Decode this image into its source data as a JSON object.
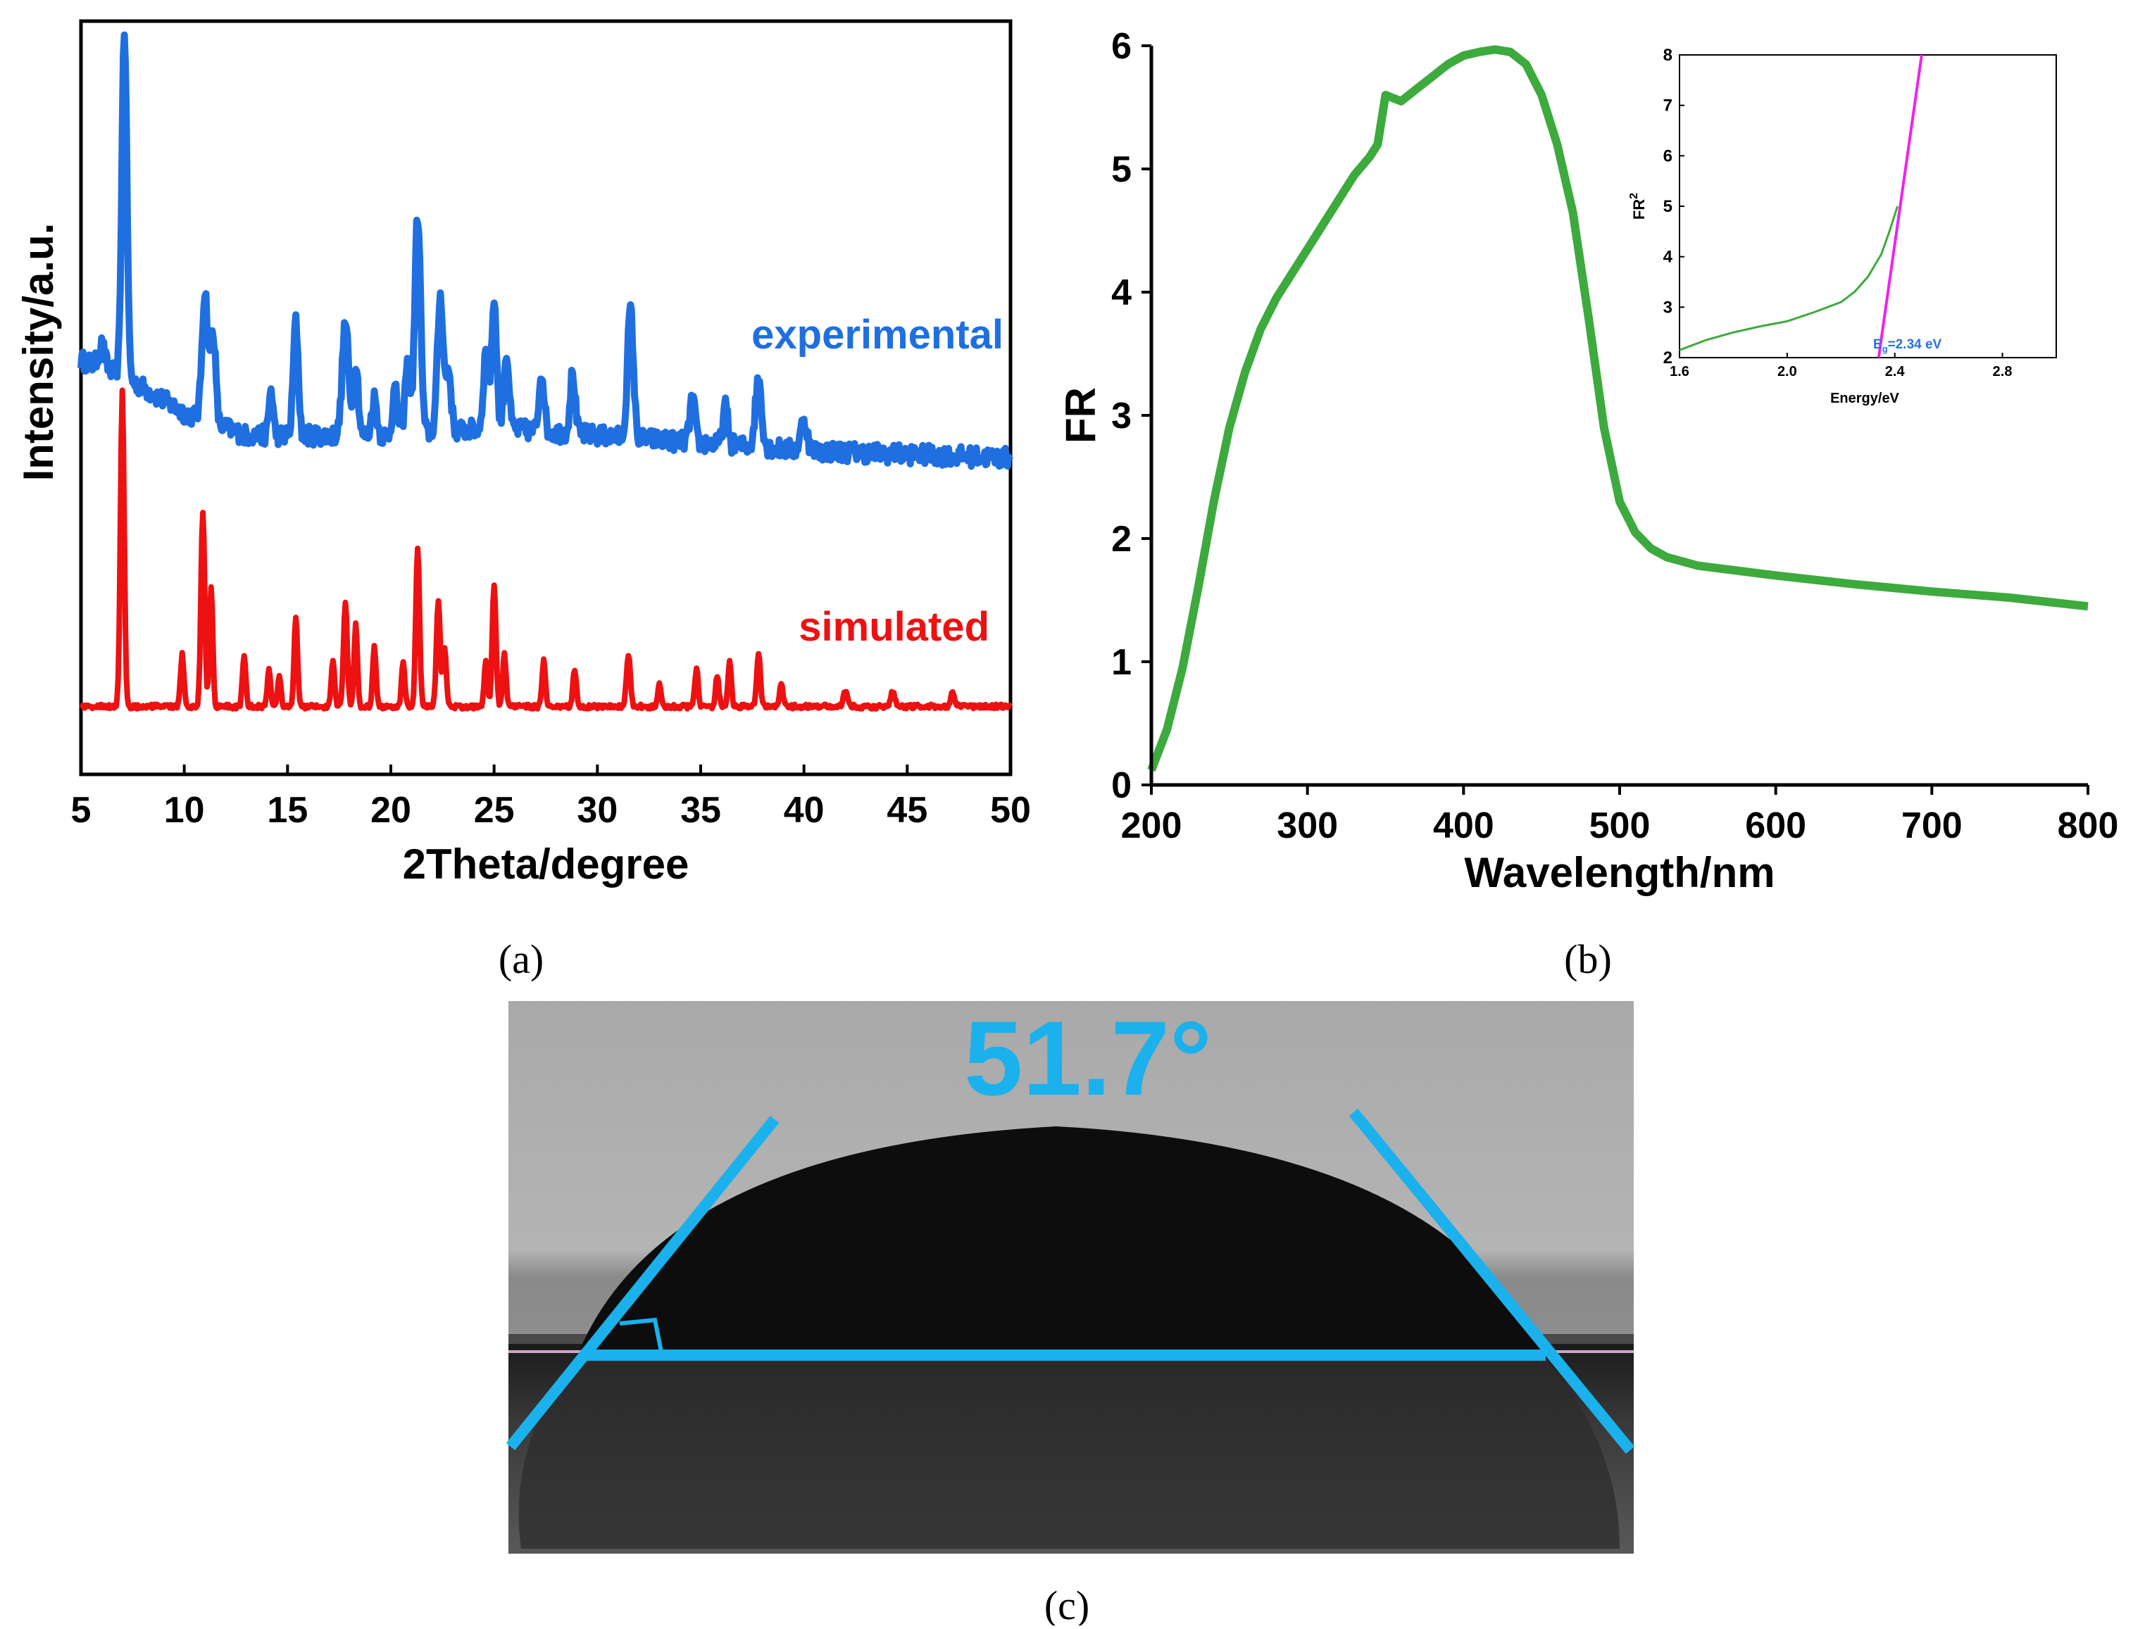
{
  "panel_labels": {
    "a": "(a)",
    "b": "(b)",
    "c": "(c)"
  },
  "colors": {
    "experimental": "#1f6fe0",
    "simulated": "#ee1111",
    "fr_curve": "#3daa3d",
    "inset_fit": "#ee22ee",
    "annotation": "#1ab1ec"
  },
  "chart_data": [
    {
      "id": "xrd",
      "type": "line",
      "title": "",
      "xlabel": "2Theta/degree",
      "ylabel": "Intensity/a.u.",
      "xlim": [
        5,
        50
      ],
      "ylim": [
        0,
        100
      ],
      "xticks": [
        5,
        10,
        15,
        20,
        25,
        30,
        35,
        40,
        45,
        50
      ],
      "xtick_labels": [
        "5",
        "10",
        "15",
        "20",
        "25",
        "30",
        "35",
        "40",
        "45",
        "50"
      ],
      "series": [
        {
          "name": "experimental",
          "label": "experimental",
          "baseline": [
            [
              5,
              55
            ],
            [
              7,
              53
            ],
            [
              10,
              48
            ],
            [
              13,
              45
            ],
            [
              20,
              45
            ],
            [
              25,
              46
            ],
            [
              30,
              45
            ],
            [
              40,
              43
            ],
            [
              50,
              42
            ]
          ],
          "peaks": [
            [
              6.0,
              3,
              0.15
            ],
            [
              7.1,
              46,
              0.12
            ],
            [
              11.0,
              17,
              0.14
            ],
            [
              11.4,
              12,
              0.12
            ],
            [
              14.2,
              6,
              0.1
            ],
            [
              15.4,
              15,
              0.12
            ],
            [
              17.8,
              15,
              0.15
            ],
            [
              18.3,
              10,
              0.12
            ],
            [
              19.2,
              5,
              0.12
            ],
            [
              20.2,
              6,
              0.12
            ],
            [
              20.8,
              9,
              0.12
            ],
            [
              21.3,
              29,
              0.14
            ],
            [
              22.4,
              18,
              0.14
            ],
            [
              22.8,
              8,
              0.12
            ],
            [
              24.6,
              10,
              0.12
            ],
            [
              25.0,
              17,
              0.12
            ],
            [
              25.6,
              10,
              0.12
            ],
            [
              27.3,
              8,
              0.12
            ],
            [
              28.8,
              8,
              0.12
            ],
            [
              31.6,
              17,
              0.14
            ],
            [
              34.6,
              6,
              0.12
            ],
            [
              36.2,
              5,
              0.12
            ],
            [
              37.8,
              9,
              0.15
            ],
            [
              40.0,
              4,
              0.15
            ]
          ]
        },
        {
          "name": "simulated",
          "label": "simulated",
          "baseline": [
            [
              5,
              9
            ],
            [
              50,
              9
            ]
          ],
          "peaks": [
            [
              7.0,
              42,
              0.09
            ],
            [
              9.9,
              7,
              0.08
            ],
            [
              10.9,
              26,
              0.09
            ],
            [
              11.3,
              16,
              0.08
            ],
            [
              12.9,
              7,
              0.08
            ],
            [
              14.1,
              5,
              0.08
            ],
            [
              14.6,
              4,
              0.08
            ],
            [
              15.4,
              12,
              0.08
            ],
            [
              17.2,
              6,
              0.08
            ],
            [
              17.8,
              14,
              0.09
            ],
            [
              18.3,
              11,
              0.08
            ],
            [
              19.2,
              8,
              0.08
            ],
            [
              20.6,
              6,
              0.08
            ],
            [
              21.3,
              21,
              0.09
            ],
            [
              22.3,
              14,
              0.09
            ],
            [
              22.6,
              8,
              0.08
            ],
            [
              24.6,
              6,
              0.08
            ],
            [
              25.0,
              16,
              0.09
            ],
            [
              25.5,
              7,
              0.08
            ],
            [
              27.4,
              6,
              0.08
            ],
            [
              28.9,
              5,
              0.08
            ],
            [
              31.5,
              7,
              0.09
            ],
            [
              33.0,
              3,
              0.08
            ],
            [
              34.8,
              5,
              0.08
            ],
            [
              35.8,
              4,
              0.08
            ],
            [
              36.4,
              6,
              0.08
            ],
            [
              37.8,
              7,
              0.09
            ],
            [
              38.9,
              3,
              0.08
            ],
            [
              42.0,
              2,
              0.1
            ],
            [
              44.3,
              2,
              0.1
            ],
            [
              47.2,
              2,
              0.1
            ]
          ]
        }
      ]
    },
    {
      "id": "fr",
      "type": "line",
      "title": "",
      "xlabel": "Wavelength/nm",
      "ylabel": "FR",
      "xlim": [
        200,
        800
      ],
      "ylim": [
        0,
        6
      ],
      "xticks": [
        200,
        300,
        400,
        500,
        600,
        700,
        800
      ],
      "xtick_labels": [
        "200",
        "300",
        "400",
        "500",
        "600",
        "700",
        "800"
      ],
      "yticks": [
        0,
        1,
        2,
        3,
        4,
        5,
        6
      ],
      "ytick_labels": [
        "0",
        "1",
        "2",
        "3",
        "4",
        "5",
        "6"
      ],
      "series": [
        {
          "name": "FR",
          "x": [
            200,
            210,
            220,
            230,
            240,
            250,
            260,
            270,
            280,
            290,
            300,
            310,
            320,
            330,
            340,
            345,
            350,
            360,
            370,
            380,
            390,
            400,
            410,
            420,
            430,
            440,
            450,
            460,
            470,
            480,
            490,
            500,
            510,
            520,
            530,
            550,
            600,
            650,
            700,
            750,
            800
          ],
          "y": [
            0.12,
            0.45,
            0.95,
            1.6,
            2.3,
            2.9,
            3.35,
            3.7,
            3.95,
            4.15,
            4.35,
            4.55,
            4.75,
            4.95,
            5.1,
            5.2,
            5.6,
            5.55,
            5.65,
            5.75,
            5.85,
            5.92,
            5.95,
            5.97,
            5.95,
            5.85,
            5.6,
            5.2,
            4.65,
            3.8,
            2.9,
            2.3,
            2.05,
            1.92,
            1.85,
            1.78,
            1.7,
            1.63,
            1.57,
            1.52,
            1.45
          ]
        }
      ],
      "inset": {
        "xlabel": "Energy/eV",
        "ylabel_main": "FR",
        "ylabel_sup": "2",
        "xlim": [
          1.6,
          3.0
        ],
        "ylim": [
          2,
          8
        ],
        "xticks": [
          1.6,
          2.0,
          2.4,
          2.8
        ],
        "xtick_labels": [
          "1.6",
          "2.0",
          "2.4",
          "2.8"
        ],
        "yticks": [
          2,
          3,
          4,
          5,
          6,
          7,
          8
        ],
        "ytick_labels": [
          "2",
          "3",
          "4",
          "5",
          "6",
          "7",
          "8"
        ],
        "curve": {
          "x": [
            1.6,
            1.7,
            1.8,
            1.9,
            2.0,
            2.1,
            2.2,
            2.25,
            2.3,
            2.35,
            2.38,
            2.41
          ],
          "y": [
            2.15,
            2.35,
            2.5,
            2.62,
            2.72,
            2.9,
            3.1,
            3.3,
            3.6,
            4.05,
            4.5,
            5.0
          ]
        },
        "fit_line": {
          "x": [
            2.34,
            2.5
          ],
          "y": [
            2.0,
            8.0
          ]
        },
        "eg_main": "E",
        "eg_sub": "g",
        "eg_value": "=2.34 eV"
      }
    }
  ],
  "contact_angle": {
    "angle_label": "51.7°",
    "angle_value": 51.7
  }
}
